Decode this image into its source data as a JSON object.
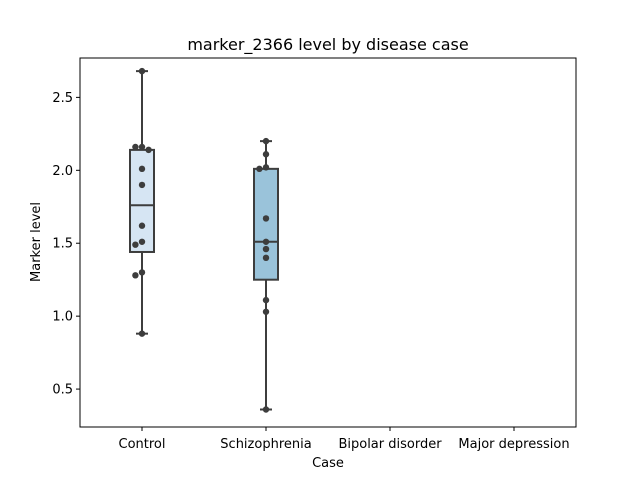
{
  "chart_data": {
    "type": "box",
    "title": "marker_2366 level by disease case",
    "xlabel": "Case",
    "ylabel": "Marker level",
    "categories": [
      "Control",
      "Schizophrenia",
      "Bipolar disorder",
      "Major depression"
    ],
    "ylim": [
      0.24,
      2.77
    ],
    "yticks": [
      0.5,
      1.0,
      1.5,
      2.0,
      2.5
    ],
    "ytick_labels": [
      "0.5",
      "1.0",
      "1.5",
      "2.0",
      "2.5"
    ],
    "grid": false,
    "boxes": [
      {
        "category": "Control",
        "whisker_low": 0.88,
        "q1": 1.44,
        "median": 1.76,
        "q3": 2.14,
        "whisker_high": 2.68,
        "color": "#d6e5f3"
      },
      {
        "category": "Schizophrenia",
        "whisker_low": 0.36,
        "q1": 1.25,
        "median": 1.51,
        "q3": 2.01,
        "whisker_high": 2.2,
        "color": "#9ac3da"
      }
    ],
    "points": [
      {
        "category": "Control",
        "values": [
          2.68,
          2.16,
          2.16,
          2.14,
          2.01,
          1.9,
          1.62,
          1.51,
          1.49,
          1.3,
          1.28,
          0.88
        ]
      },
      {
        "category": "Schizophrenia",
        "values": [
          2.2,
          2.11,
          2.02,
          2.01,
          1.67,
          1.51,
          1.46,
          1.4,
          1.11,
          1.03,
          0.36
        ]
      }
    ]
  }
}
